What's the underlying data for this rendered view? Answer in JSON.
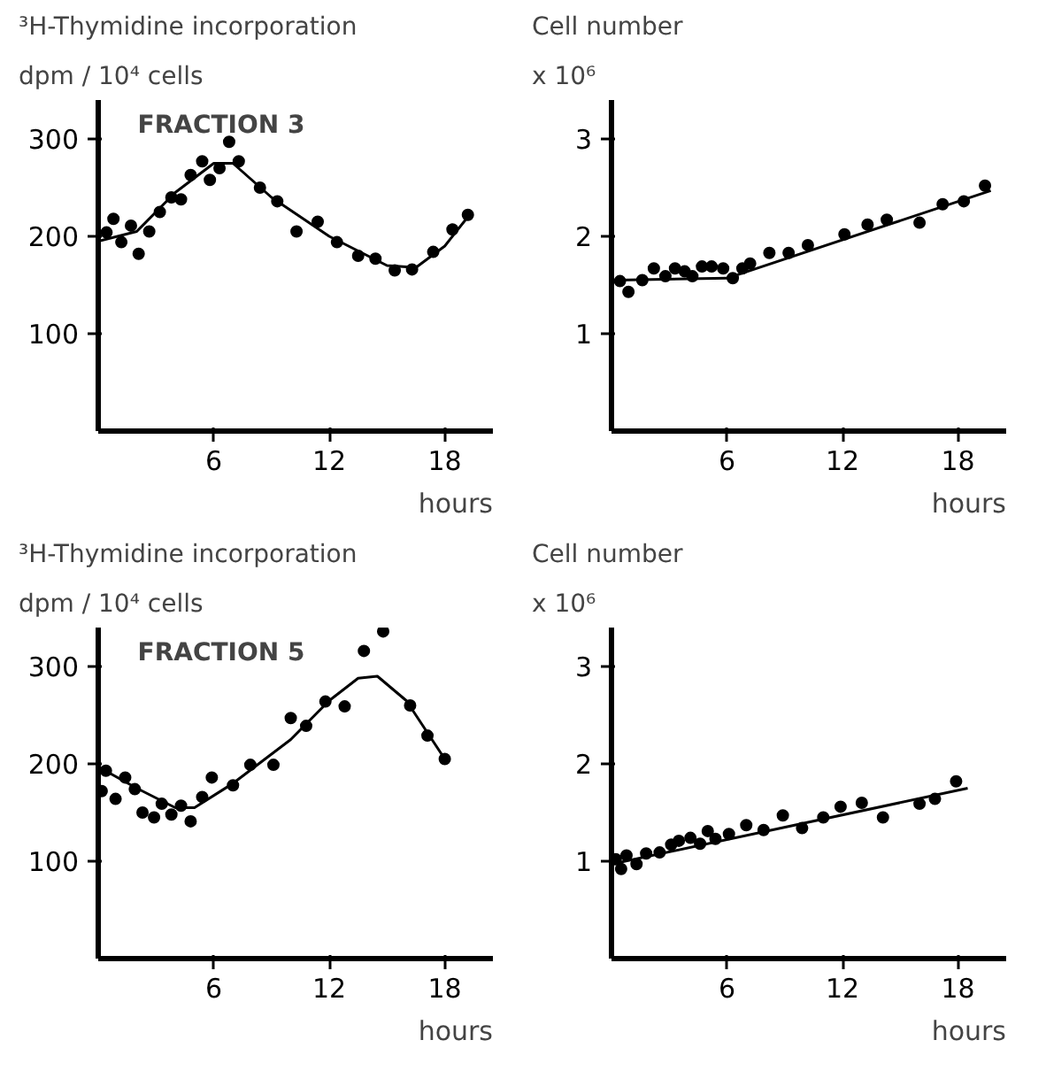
{
  "chart_data": [
    {
      "type": "scatter",
      "title": "³H-Thymidine incorporation",
      "ylabel": "dpm / 10⁴ cells",
      "xlabel": "hours",
      "annotations": [
        "FRACTION 3"
      ],
      "xlim": [
        0,
        20.5
      ],
      "ylim": [
        0,
        340
      ],
      "xticks": [
        6,
        12,
        18
      ],
      "yticks": [
        100,
        200,
        300
      ],
      "grid": false,
      "marker": "circle",
      "series": [
        {
          "color": "#000000",
          "x": [
            0.43,
            0.79,
            1.2,
            1.7,
            2.1,
            2.65,
            3.2,
            3.8,
            4.3,
            4.8,
            5.4,
            5.8,
            6.3,
            6.8,
            7.3,
            8.4,
            9.3,
            10.3,
            11.4,
            12.4,
            13.5,
            14.4,
            15.4,
            16.3,
            17.4,
            18.4,
            19.2
          ],
          "values": [
            204,
            218,
            194,
            211,
            182,
            205,
            225,
            240,
            238,
            263,
            277,
            258,
            270,
            297,
            277,
            250,
            236,
            205,
            215,
            194,
            180,
            177,
            165,
            166,
            184,
            207,
            222
          ]
        },
        {
          "type": "line",
          "marker": "none",
          "color": "#000000",
          "x": [
            0,
            2,
            4,
            6,
            7,
            9,
            12,
            15,
            16.5,
            18,
            19.2
          ],
          "values": [
            195,
            205,
            245,
            275,
            275,
            240,
            200,
            170,
            168,
            190,
            220
          ]
        }
      ]
    },
    {
      "type": "scatter",
      "title": "Cell number",
      "ylabel": "x 10⁶",
      "xlabel": "hours",
      "xlim": [
        0,
        20.5
      ],
      "ylim": [
        0,
        3.4
      ],
      "xticks": [
        6,
        12,
        18
      ],
      "yticks": [
        1,
        2,
        3
      ],
      "grid": false,
      "marker": "circle",
      "series": [
        {
          "color": "#000000",
          "x": [
            0.44,
            0.88,
            1.6,
            2.2,
            2.8,
            3.3,
            3.8,
            4.2,
            4.7,
            5.2,
            5.8,
            6.3,
            6.8,
            7.2,
            8.2,
            9.2,
            10.2,
            12.1,
            13.3,
            14.3,
            16.0,
            17.2,
            18.3,
            19.4
          ],
          "values": [
            1.54,
            1.43,
            1.55,
            1.67,
            1.59,
            1.67,
            1.64,
            1.59,
            1.69,
            1.69,
            1.67,
            1.57,
            1.67,
            1.72,
            1.83,
            1.83,
            1.91,
            2.02,
            2.12,
            2.17,
            2.14,
            2.33,
            2.36,
            2.52
          ]
        },
        {
          "type": "line",
          "marker": "none",
          "color": "#000000",
          "x": [
            0.3,
            6,
            19.7
          ],
          "values": [
            1.55,
            1.57,
            2.47
          ]
        }
      ]
    },
    {
      "type": "scatter",
      "title": "³H-Thymidine incorporation",
      "ylabel": "dpm / 10⁴ cells",
      "xlabel": "hours",
      "annotations": [
        "FRACTION 5"
      ],
      "xlim": [
        0,
        20.5
      ],
      "ylim": [
        0,
        340
      ],
      "xticks": [
        6,
        12,
        18
      ],
      "yticks": [
        100,
        200,
        300
      ],
      "grid": false,
      "marker": "circle",
      "series": [
        {
          "color": "#000000",
          "x": [
            0.18,
            0.4,
            0.9,
            1.4,
            1.9,
            2.3,
            2.9,
            3.3,
            3.8,
            4.3,
            4.8,
            5.4,
            5.9,
            7.0,
            7.9,
            9.1,
            10.0,
            10.8,
            11.8,
            12.8,
            13.8,
            14.8,
            16.2,
            17.1,
            18.0
          ],
          "values": [
            172,
            193,
            164,
            186,
            174,
            150,
            145,
            159,
            148,
            157,
            141,
            166,
            186,
            178,
            199,
            199,
            247,
            239,
            264,
            259,
            316,
            336,
            260,
            229,
            205
          ]
        },
        {
          "type": "line",
          "marker": "none",
          "color": "#000000",
          "x": [
            0,
            2,
            4,
            5,
            7,
            10,
            12,
            13.5,
            14.5,
            16,
            18
          ],
          "values": [
            197,
            175,
            155,
            155,
            180,
            225,
            265,
            288,
            290,
            265,
            205
          ]
        }
      ]
    },
    {
      "type": "scatter",
      "title": "Cell number",
      "ylabel": "x 10⁶",
      "xlabel": "hours",
      "xlim": [
        0,
        20.5
      ],
      "ylim": [
        0,
        3.4
      ],
      "xticks": [
        6,
        12,
        18
      ],
      "yticks": [
        1,
        2,
        3
      ],
      "grid": false,
      "marker": "circle",
      "series": [
        {
          "color": "#000000",
          "x": [
            0.22,
            0.5,
            0.78,
            1.3,
            1.8,
            2.5,
            3.1,
            3.5,
            4.1,
            4.6,
            5.0,
            5.4,
            6.1,
            7.0,
            7.9,
            8.9,
            9.9,
            11.0,
            11.9,
            13.0,
            14.1,
            16.0,
            16.8,
            17.9
          ],
          "values": [
            1.02,
            0.92,
            1.06,
            0.97,
            1.08,
            1.09,
            1.17,
            1.21,
            1.24,
            1.18,
            1.31,
            1.23,
            1.28,
            1.37,
            1.32,
            1.47,
            1.34,
            1.45,
            1.56,
            1.6,
            1.45,
            1.59,
            1.64,
            1.82
          ]
        },
        {
          "type": "line",
          "marker": "none",
          "color": "#000000",
          "x": [
            0,
            18.5
          ],
          "values": [
            0.97,
            1.75
          ]
        }
      ]
    }
  ]
}
